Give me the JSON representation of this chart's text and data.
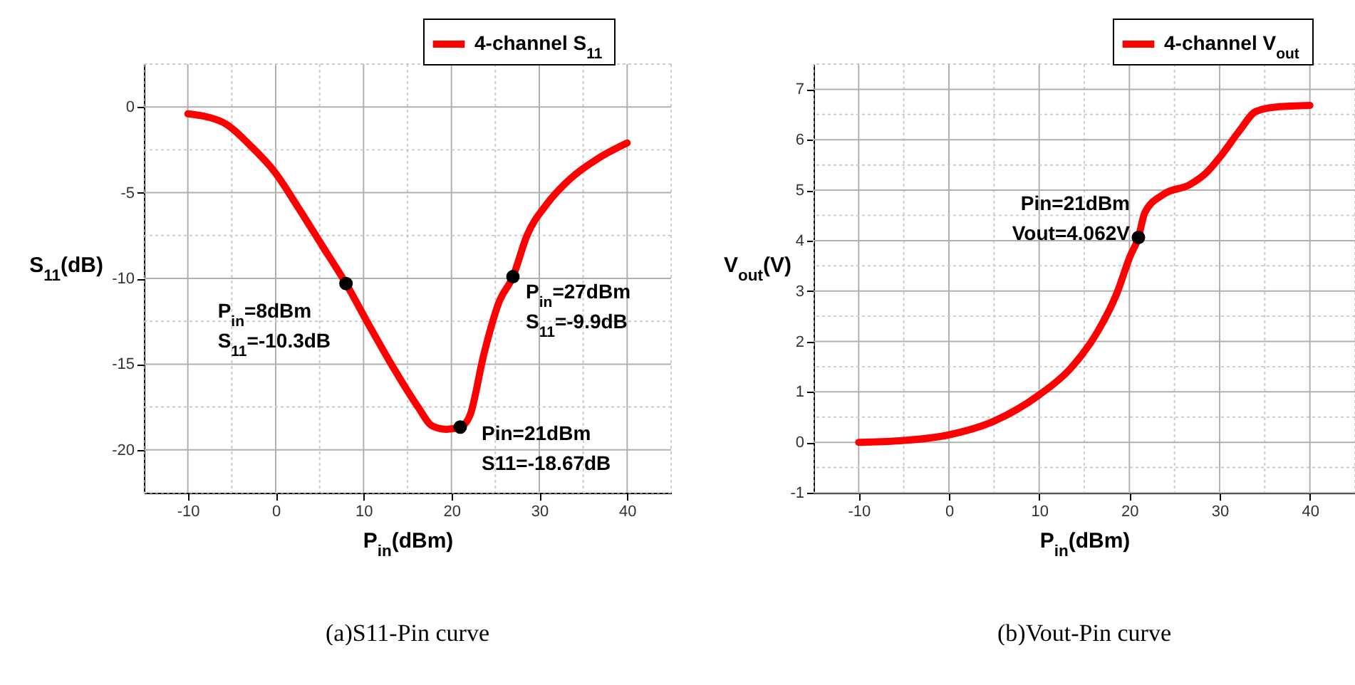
{
  "chart_data": [
    {
      "type": "line",
      "title": "(a)S11-Pin curve",
      "xlabel": "P$_{in}$(dBm)",
      "ylabel": "S$_{11}$(dB)",
      "xlim": [
        -15,
        45
      ],
      "ylim": [
        -22.5,
        2.5
      ],
      "xticks": [
        {
          "value": -15,
          "label": null
        },
        -10,
        {
          "value": -5,
          "label": null
        },
        0,
        {
          "value": 5,
          "label": null
        },
        10,
        {
          "value": 15,
          "label": null
        },
        20,
        {
          "value": 25,
          "label": null
        },
        30,
        {
          "value": 35,
          "label": null
        },
        40,
        {
          "value": 45,
          "label": null
        }
      ],
      "yticks": [
        {
          "value": 2.5,
          "label": null
        },
        0,
        {
          "value": -2.5,
          "label": null
        },
        -5,
        {
          "value": -7.5,
          "label": null
        },
        -10,
        {
          "value": -12.5,
          "label": null
        },
        -15,
        {
          "value": -17.5,
          "label": null
        },
        -20,
        {
          "value": -22.5,
          "label": null
        }
      ],
      "grid": true,
      "legend": "top right",
      "series": [
        {
          "name": "4-channel S$_{11}$",
          "color": "#ff0000",
          "x": [
            -10,
            -6,
            -2.8,
            -0.1,
            2.6,
            5.3,
            8,
            10.7,
            13.5,
            16.2,
            17.8,
            19.4,
            21,
            22.1,
            23.7,
            25.4,
            27,
            28.6,
            30.8,
            33.5,
            36.7,
            40
          ],
          "values": [
            -0.4,
            -0.9,
            -2.3,
            -3.8,
            -5.9,
            -8.1,
            -10.3,
            -12.8,
            -15.3,
            -17.5,
            -18.6,
            -18.8,
            -18.67,
            -18.0,
            -14.4,
            -11.4,
            -9.9,
            -7.5,
            -5.7,
            -4.2,
            -3.0,
            -2.1
          ]
        }
      ],
      "annotations": [
        {
          "text": "P$_{in}$=8dBm\nS$_{11}$=-10.3dB",
          "x": 8,
          "y": -10.3
        },
        {
          "text": "P$_{in}$=27dBm\nS$_{11}$=-9.9dB",
          "x": 27,
          "y": -9.9
        },
        {
          "text": "Pin=21dBm\nS11=-18.67dB",
          "x": 21,
          "y": -18.67
        }
      ]
    },
    {
      "type": "line",
      "title": "(b)Vout-Pin curve",
      "xlabel": "P$_{in}$(dBm)",
      "ylabel": "V$_{out}$(V)",
      "xlim": [
        -15,
        45
      ],
      "ylim": [
        -1,
        7.5
      ],
      "xticks": [
        {
          "value": -15,
          "label": null
        },
        -10,
        {
          "value": -5,
          "label": null
        },
        0,
        {
          "value": 5,
          "label": null
        },
        10,
        {
          "value": 15,
          "label": null
        },
        20,
        {
          "value": 25,
          "label": null
        },
        30,
        {
          "value": 35,
          "label": null
        },
        40,
        {
          "value": 45,
          "label": null
        }
      ],
      "yticks": [
        -1,
        {
          "value": -0.5,
          "label": null
        },
        0,
        {
          "value": 0.5,
          "label": null
        },
        1,
        {
          "value": 1.5,
          "label": null
        },
        2,
        {
          "value": 2.5,
          "label": null
        },
        3,
        {
          "value": 3.5,
          "label": null
        },
        4,
        {
          "value": 4.5,
          "label": null
        },
        5,
        {
          "value": 5.5,
          "label": null
        },
        6,
        {
          "value": 6.5,
          "label": null
        },
        7,
        {
          "value": 7.5,
          "label": null
        }
      ],
      "grid": true,
      "legend": "top right",
      "series": [
        {
          "name": "4-channel V$_{out}$",
          "color": "#ff0000",
          "x": [
            -10,
            -5.5,
            -0.2,
            5,
            10,
            13.4,
            16.5,
            18.6,
            20.1,
            21,
            21.7,
            23.8,
            26.7,
            28.5,
            30.1,
            32.2,
            34,
            36.3,
            40
          ],
          "values": [
            0,
            0.03,
            0.14,
            0.42,
            0.94,
            1.45,
            2.2,
            2.95,
            3.7,
            4.06,
            4.55,
            4.92,
            5.11,
            5.34,
            5.67,
            6.18,
            6.56,
            6.65,
            6.68
          ]
        }
      ],
      "annotations": [
        {
          "text": "Pin=21dBm\nVout=4.062V",
          "x": 21,
          "y": 4.062
        }
      ]
    }
  ]
}
